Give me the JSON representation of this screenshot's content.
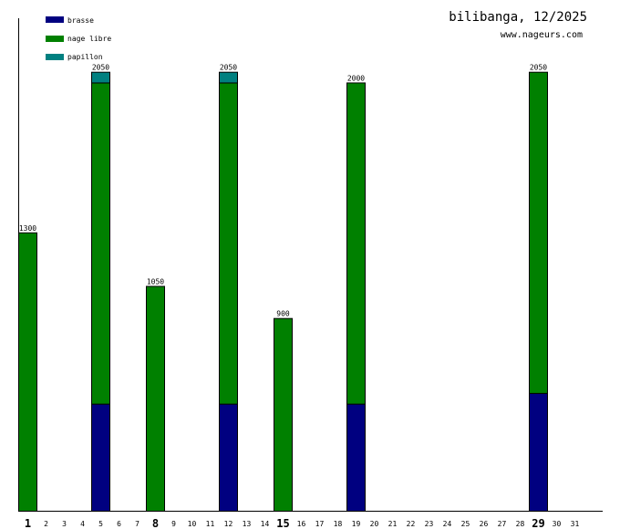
{
  "header": {
    "title": "bilibanga, 12/2025",
    "site": "www.nageurs.com"
  },
  "colors": {
    "brasse": "#000080",
    "nage_libre": "#008000",
    "papillon": "#008080",
    "axis": "#000000",
    "background": "#ffffff"
  },
  "chart_data": {
    "type": "bar",
    "stacked": true,
    "categories": [
      "1",
      "2",
      "3",
      "4",
      "5",
      "6",
      "7",
      "8",
      "9",
      "10",
      "11",
      "12",
      "13",
      "14",
      "15",
      "16",
      "17",
      "18",
      "19",
      "20",
      "21",
      "22",
      "23",
      "24",
      "25",
      "26",
      "27",
      "28",
      "29",
      "30",
      "31"
    ],
    "bold_categories": [
      "1",
      "8",
      "15",
      "29"
    ],
    "series": [
      {
        "name": "brasse",
        "color": "#000080",
        "values": [
          0,
          0,
          0,
          0,
          500,
          0,
          0,
          0,
          0,
          0,
          0,
          500,
          0,
          0,
          0,
          0,
          0,
          0,
          500,
          0,
          0,
          0,
          0,
          0,
          0,
          0,
          0,
          0,
          550,
          0,
          0
        ]
      },
      {
        "name": "nage libre",
        "color": "#008000",
        "values": [
          1300,
          0,
          0,
          0,
          1500,
          0,
          0,
          1050,
          0,
          0,
          0,
          1500,
          0,
          0,
          900,
          0,
          0,
          0,
          1500,
          0,
          0,
          0,
          0,
          0,
          0,
          0,
          0,
          0,
          1500,
          0,
          0
        ]
      },
      {
        "name": "papillon",
        "color": "#008080",
        "values": [
          0,
          0,
          0,
          0,
          50,
          0,
          0,
          0,
          0,
          0,
          0,
          50,
          0,
          0,
          0,
          0,
          0,
          0,
          0,
          0,
          0,
          0,
          0,
          0,
          0,
          0,
          0,
          0,
          0,
          0,
          0
        ]
      }
    ],
    "totals": [
      1300,
      0,
      0,
      0,
      2050,
      0,
      0,
      1050,
      0,
      0,
      0,
      2050,
      0,
      0,
      900,
      0,
      0,
      0,
      2000,
      0,
      0,
      0,
      0,
      0,
      0,
      0,
      0,
      0,
      2050,
      0,
      0
    ],
    "ylim": [
      0,
      2300
    ],
    "grid": false,
    "legend_position": "top-left"
  }
}
